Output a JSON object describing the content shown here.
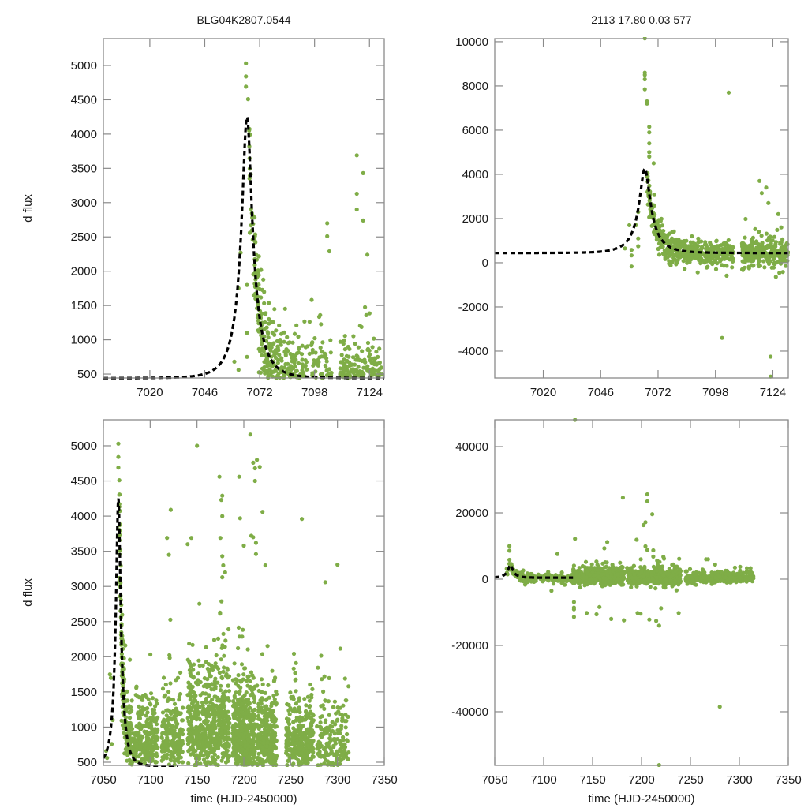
{
  "chart_data": [
    {
      "id": "top-left",
      "type": "scatter",
      "title": "BLG04K2807.0544",
      "xlabel": "",
      "ylabel": "d flux",
      "xlim": [
        6998,
        7131
      ],
      "ylim": [
        443,
        5391
      ],
      "xticks": [
        7020,
        7046,
        7072,
        7098,
        7124
      ],
      "xtick_labels": [
        "7020",
        "7046",
        "7072",
        "7098",
        "7124"
      ],
      "yticks": [
        500,
        1000,
        1500,
        2000,
        2500,
        3000,
        3500,
        4000,
        4500,
        5000
      ],
      "ytick_labels": [
        "500",
        "1000",
        "1500",
        "2000",
        "2500",
        "3000",
        "3500",
        "4000",
        "4500",
        "5000"
      ],
      "minor_top_ticks": [
        7020,
        7046,
        7072,
        7098,
        7124
      ],
      "model": {
        "t0": 7066,
        "peak": 4250,
        "baseline": 440,
        "tE": 9.5,
        "line": "dashed",
        "color": "#000000"
      },
      "series_color": "#7fad47",
      "highlight_points": [
        [
          7065.5,
          5030
        ],
        [
          7065.5,
          4840
        ],
        [
          7065.5,
          4690
        ],
        [
          7066.5,
          4510
        ],
        [
          7062,
          1750
        ],
        [
          7066,
          1800
        ],
        [
          7063,
          2270
        ],
        [
          7060,
          680
        ],
        [
          7062,
          560
        ],
        [
          7066,
          1100
        ],
        [
          7066,
          750
        ],
        [
          7118,
          3690
        ],
        [
          7121,
          3430
        ],
        [
          7118,
          3130
        ],
        [
          7118,
          2900
        ],
        [
          7121,
          2740
        ],
        [
          7104,
          2700
        ],
        [
          7104,
          2510
        ],
        [
          7105,
          2290
        ],
        [
          7123,
          2240
        ]
      ],
      "clusters": [
        {
          "t_from": 7067,
          "t_to": 7082,
          "n": 220,
          "follow_model": true,
          "scatter": 350
        },
        {
          "t_from": 7082,
          "t_to": 7106,
          "n": 260,
          "follow_model": true,
          "scatter": 300
        },
        {
          "t_from": 7110,
          "t_to": 7130,
          "n": 280,
          "follow_model": true,
          "scatter": 260
        }
      ]
    },
    {
      "id": "top-right",
      "type": "scatter",
      "title": "2113  17.80  0.03  577",
      "xlabel": "",
      "ylabel": "",
      "xlim": [
        6998,
        7131
      ],
      "ylim": [
        -5215,
        10140
      ],
      "xticks": [
        7020,
        7046,
        7072,
        7098,
        7124
      ],
      "xtick_labels": [
        "7020",
        "7046",
        "7072",
        "7098",
        "7124"
      ],
      "yticks": [
        -4000,
        -2000,
        0,
        2000,
        4000,
        6000,
        8000,
        10000
      ],
      "ytick_labels": [
        "-4000",
        "-2000",
        "0",
        "2000",
        "4000",
        "6000",
        "8000",
        "10000"
      ],
      "model": {
        "t0": 7066,
        "peak": 4250,
        "baseline": 440,
        "tE": 9.5,
        "line": "dashed",
        "color": "#000000"
      },
      "series_color": "#7fad47",
      "highlight_points": [
        [
          7066,
          10150
        ],
        [
          7066,
          8600
        ],
        [
          7066,
          8500
        ],
        [
          7066,
          8300
        ],
        [
          7066,
          7850
        ],
        [
          7067,
          7300
        ],
        [
          7067,
          7200
        ],
        [
          7068,
          6150
        ],
        [
          7068,
          5900
        ],
        [
          7068,
          5400
        ],
        [
          7068,
          5000
        ],
        [
          7068,
          4800
        ],
        [
          7070,
          4500
        ],
        [
          7104,
          7700
        ],
        [
          7062,
          1700
        ],
        [
          7059,
          1700
        ],
        [
          7063,
          2300
        ],
        [
          7057,
          650
        ],
        [
          7060,
          580
        ],
        [
          7060,
          330
        ],
        [
          7060,
          -170
        ],
        [
          7063,
          750
        ],
        [
          7063,
          1100
        ],
        [
          7101,
          -3400
        ],
        [
          7123,
          -4250
        ],
        [
          7123,
          -5150
        ],
        [
          7118,
          3700
        ],
        [
          7119,
          3150
        ],
        [
          7121,
          3400
        ],
        [
          7122,
          2700
        ]
      ],
      "clusters": [
        {
          "t_from": 7067,
          "t_to": 7082,
          "n": 220,
          "follow_model": true,
          "scatter": 350
        },
        {
          "t_from": 7082,
          "t_to": 7106,
          "n": 260,
          "follow_model": true,
          "scatter": 300
        },
        {
          "t_from": 7110,
          "t_to": 7131,
          "n": 300,
          "follow_model": true,
          "scatter": 320
        }
      ]
    },
    {
      "id": "bottom-left",
      "type": "scatter",
      "title": "",
      "xlabel": "time (HJD-2450000)",
      "ylabel": "d flux",
      "xlim": [
        7050,
        7350
      ],
      "ylim": [
        455,
        5370
      ],
      "xticks": [
        7050,
        7100,
        7150,
        7200,
        7250,
        7300,
        7350
      ],
      "xtick_labels": [
        "7050",
        "7100",
        "7150",
        "7200",
        "7250",
        "7300",
        "7350"
      ],
      "yticks": [
        500,
        1000,
        1500,
        2000,
        2500,
        3000,
        3500,
        4000,
        4500,
        5000
      ],
      "ytick_labels": [
        "500",
        "1000",
        "1500",
        "2000",
        "2500",
        "3000",
        "3500",
        "4000",
        "4500",
        "5000"
      ],
      "model": {
        "t0": 7066,
        "peak": 4250,
        "baseline": 440,
        "tE": 9.5,
        "t_end": 7130,
        "line": "dashed",
        "color": "#000000"
      },
      "series_color": "#7fad47",
      "highlight_points": [
        [
          7066,
          5030
        ],
        [
          7066,
          4840
        ],
        [
          7066,
          4690
        ],
        [
          7067,
          4510
        ],
        [
          7150,
          5000
        ],
        [
          7174,
          4560
        ],
        [
          7177,
          4290
        ],
        [
          7176,
          4230
        ],
        [
          7177,
          4000
        ],
        [
          7175,
          3690
        ],
        [
          7177,
          3430
        ],
        [
          7177,
          3130
        ],
        [
          7178,
          3300
        ],
        [
          7180,
          3200
        ],
        [
          7207,
          5160
        ],
        [
          7210,
          4760
        ],
        [
          7214,
          4800
        ],
        [
          7212,
          4680
        ],
        [
          7217,
          4700
        ],
        [
          7212,
          4500
        ],
        [
          7220,
          4060
        ],
        [
          7195,
          4560
        ],
        [
          7196,
          3970
        ],
        [
          7208,
          3720
        ],
        [
          7210,
          3700
        ],
        [
          7213,
          3620
        ],
        [
          7213,
          3460
        ],
        [
          7223,
          3300
        ],
        [
          7200,
          3580
        ],
        [
          7144,
          3690
        ],
        [
          7122,
          4090
        ],
        [
          7118,
          3690
        ],
        [
          7120,
          3450
        ],
        [
          7140,
          3600
        ],
        [
          7262,
          3960
        ],
        [
          7300,
          3310
        ],
        [
          7287,
          3060
        ],
        [
          7057,
          1750
        ],
        [
          7058,
          1700
        ],
        [
          7060,
          1100
        ],
        [
          7059,
          760
        ],
        [
          7053,
          660
        ],
        [
          7054,
          560
        ]
      ],
      "clusters": [
        {
          "t_from": 7067,
          "t_to": 7085,
          "n": 260,
          "follow_model": true,
          "scatter": 350
        },
        {
          "t_from": 7085,
          "t_to": 7108,
          "n": 240,
          "follow_model": false,
          "center": 800,
          "scatter": 350
        },
        {
          "t_from": 7112,
          "t_to": 7135,
          "n": 220,
          "follow_model": false,
          "center": 800,
          "scatter": 380
        },
        {
          "t_from": 7140,
          "t_to": 7185,
          "n": 620,
          "follow_model": false,
          "center": 1000,
          "scatter": 550
        },
        {
          "t_from": 7188,
          "t_to": 7212,
          "n": 480,
          "follow_model": false,
          "center": 850,
          "scatter": 450
        },
        {
          "t_from": 7214,
          "t_to": 7235,
          "n": 320,
          "follow_model": false,
          "center": 800,
          "scatter": 420
        },
        {
          "t_from": 7245,
          "t_to": 7275,
          "n": 330,
          "follow_model": false,
          "center": 780,
          "scatter": 330
        },
        {
          "t_from": 7278,
          "t_to": 7312,
          "n": 200,
          "follow_model": false,
          "center": 780,
          "scatter": 380
        }
      ]
    },
    {
      "id": "bottom-right",
      "type": "scatter",
      "title": "",
      "xlabel": "time (HJD-2450000)",
      "ylabel": "",
      "xlim": [
        7050,
        7350
      ],
      "ylim": [
        -56200,
        48100
      ],
      "xticks": [
        7050,
        7100,
        7150,
        7200,
        7250,
        7300,
        7350
      ],
      "xtick_labels": [
        "7050",
        "7100",
        "7150",
        "7200",
        "7250",
        "7300",
        "7350"
      ],
      "yticks": [
        -40000,
        -20000,
        0,
        20000,
        40000
      ],
      "ytick_labels": [
        "-40000",
        "-20000",
        "0",
        "20000",
        "40000"
      ],
      "model": {
        "t0": 7066,
        "peak": 4250,
        "baseline": 440,
        "tE": 9.5,
        "t_end": 7130,
        "line": "dashed",
        "color": "#000000"
      },
      "series_color": "#7fad47",
      "highlight_points": [
        [
          7132,
          48100
        ],
        [
          7132,
          12200
        ],
        [
          7131,
          4100
        ],
        [
          7181,
          24600
        ],
        [
          7165,
          11200
        ],
        [
          7162,
          9300
        ],
        [
          7204,
          17200
        ],
        [
          7206,
          25600
        ],
        [
          7206,
          23500
        ],
        [
          7202,
          16300
        ],
        [
          7211,
          19600
        ],
        [
          7195,
          11900
        ],
        [
          7204,
          9900
        ],
        [
          7206,
          8800
        ],
        [
          7212,
          8700
        ],
        [
          7212,
          6800
        ],
        [
          7223,
          6200
        ],
        [
          7216,
          5600
        ],
        [
          7266,
          6000
        ],
        [
          7268,
          6000
        ],
        [
          7065,
          10000
        ],
        [
          7065,
          8600
        ],
        [
          7114,
          7600
        ],
        [
          7108,
          -3500
        ],
        [
          7131,
          -6900
        ],
        [
          7131,
          -8600
        ],
        [
          7131,
          -9100
        ],
        [
          7131,
          -11400
        ],
        [
          7154,
          -10600
        ],
        [
          7144,
          -10200
        ],
        [
          7157,
          -8400
        ],
        [
          7169,
          -12000
        ],
        [
          7182,
          -12400
        ],
        [
          7196,
          -10200
        ],
        [
          7199,
          -10400
        ],
        [
          7208,
          -12200
        ],
        [
          7215,
          -12600
        ],
        [
          7218,
          -14000
        ],
        [
          7220,
          -8800
        ],
        [
          7238,
          -10200
        ],
        [
          7280,
          -38500
        ],
        [
          7218,
          -56100
        ]
      ],
      "clusters": [
        {
          "t_from": 7062,
          "t_to": 7130,
          "n": 180,
          "follow_model": true,
          "scatter": 700
        },
        {
          "t_from": 7130,
          "t_to": 7182,
          "n": 520,
          "follow_model": false,
          "center": 500,
          "scatter": 1600
        },
        {
          "t_from": 7185,
          "t_to": 7240,
          "n": 480,
          "follow_model": false,
          "center": 500,
          "scatter": 1700
        },
        {
          "t_from": 7245,
          "t_to": 7315,
          "n": 420,
          "follow_model": false,
          "center": 300,
          "scatter": 1000
        }
      ]
    }
  ]
}
